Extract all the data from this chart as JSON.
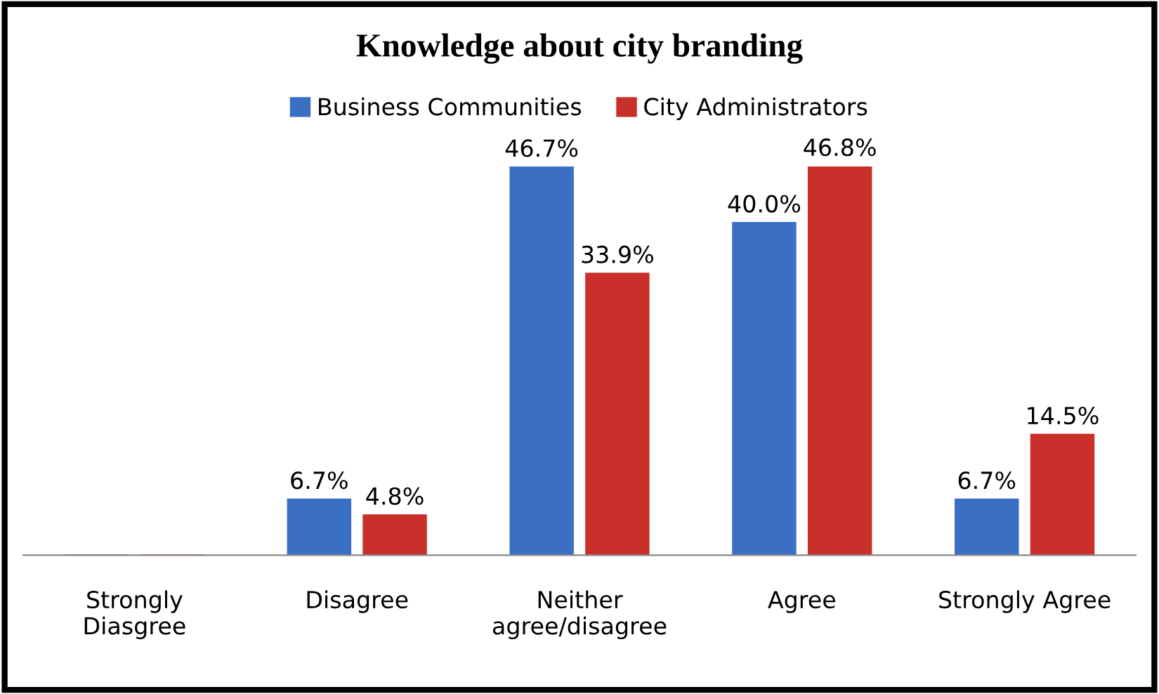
{
  "chart_data": {
    "type": "bar",
    "title": "Knowledge about city branding",
    "categories": [
      "Strongly\nDiasgree",
      "Disagree",
      "Neither\nagree/disagree",
      "Agree",
      "Strongly Agree"
    ],
    "series": [
      {
        "name": "Business Communities",
        "color": "#3a6fc4",
        "values": [
          0,
          6.7,
          46.7,
          40.0,
          6.7
        ],
        "value_labels": [
          null,
          "6.7%",
          "46.7%",
          "40.0%",
          "6.7%"
        ]
      },
      {
        "name": "City Administrators",
        "color": "#c9302c",
        "values": [
          0,
          4.8,
          33.9,
          46.8,
          14.5
        ],
        "value_labels": [
          null,
          "4.8%",
          "33.9%",
          "46.8%",
          "14.5%"
        ]
      }
    ],
    "legend": "top",
    "grid": false
  }
}
